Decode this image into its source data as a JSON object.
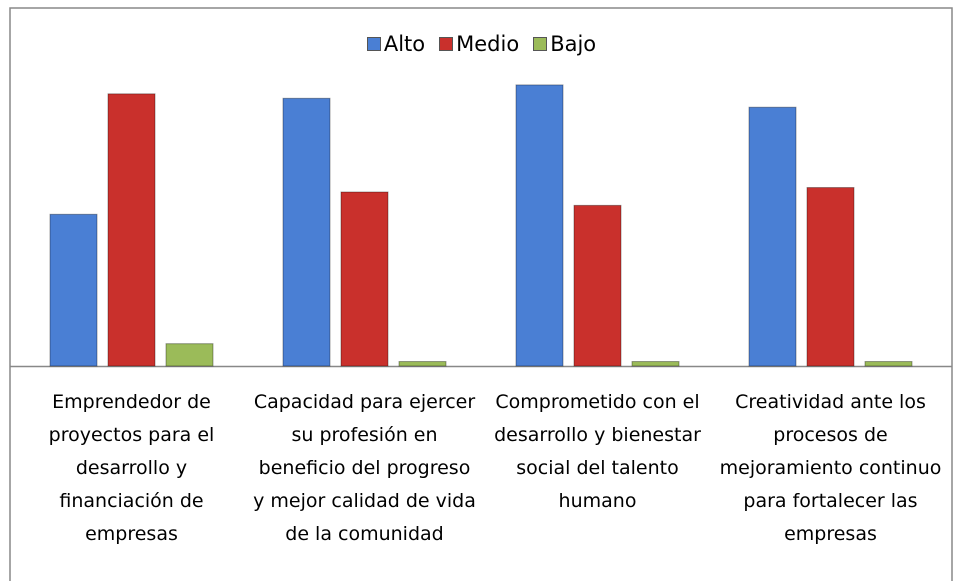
{
  "chart_data": {
    "type": "bar",
    "categories": [
      "Emprendedor de proyectos para el desarrollo y financiación de empresas",
      "Capacidad para ejercer su profesión en beneficio del progreso y mejor calidad de vida de la comunidad",
      "Comprometido con el desarrollo y bienestar social del talento humano",
      "Creatividad ante los procesos de mejoramiento continuo para fortalecer las empresas"
    ],
    "series": [
      {
        "name": "Alto",
        "color": "#4a7fd4",
        "values": [
          34,
          60,
          63,
          58
        ]
      },
      {
        "name": "Medio",
        "color": "#c9302c",
        "values": [
          61,
          39,
          36,
          40
        ]
      },
      {
        "name": "Bajo",
        "color": "#9bbb59",
        "values": [
          5,
          1,
          1,
          1
        ]
      }
    ],
    "ylim": [
      0,
      65
    ],
    "legend": "top"
  }
}
